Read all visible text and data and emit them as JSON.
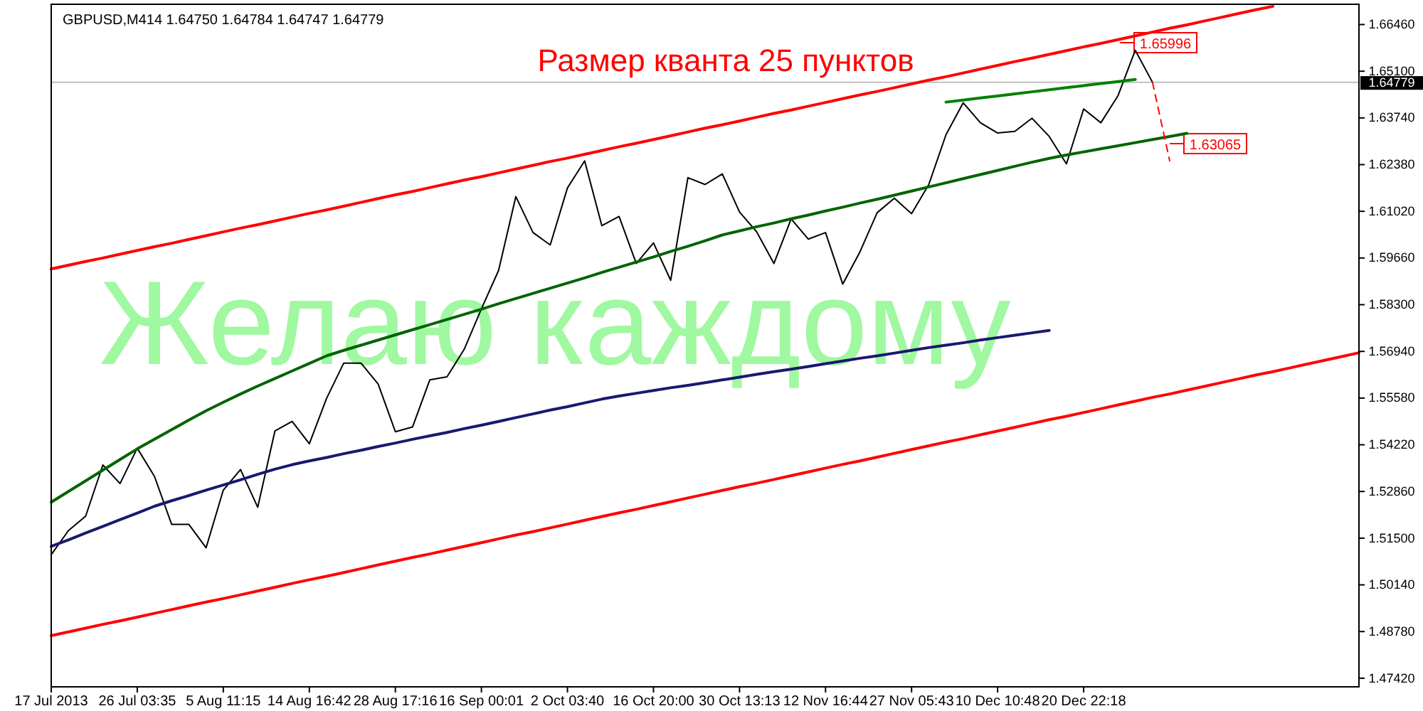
{
  "chart_data": {
    "type": "line",
    "title": "GBPUSD,M414  1.64750 1.64784 1.64747 1.64779",
    "categories": [
      "17 Jul 2013",
      null,
      null,
      null,
      null,
      "26 Jul 03:35",
      null,
      null,
      null,
      null,
      "5 Aug 11:15",
      null,
      null,
      null,
      null,
      "14 Aug 16:42",
      null,
      null,
      null,
      null,
      "28 Aug 17:16",
      null,
      null,
      null,
      null,
      "16 Sep 00:01",
      null,
      null,
      null,
      null,
      "2 Oct 03:40",
      null,
      null,
      null,
      null,
      "16 Oct 20:00",
      null,
      null,
      null,
      null,
      "30 Oct 13:13",
      null,
      null,
      null,
      null,
      "12 Nov 16:44",
      null,
      null,
      null,
      null,
      "27 Nov 05:43",
      null,
      null,
      null,
      null,
      "10 Dec 10:48",
      null,
      null,
      null,
      null,
      "20 Dec 22:18",
      null,
      null,
      null,
      null,
      null,
      null,
      null,
      null,
      null,
      null,
      null,
      null,
      null,
      null,
      null,
      null
    ],
    "ylim": [
      1.4717,
      1.6705
    ],
    "yticks": [
      {
        "value": 1.4742,
        "label": "1.47420"
      },
      {
        "value": 1.4878,
        "label": "1.48780"
      },
      {
        "value": 1.5014,
        "label": "1.50140"
      },
      {
        "value": 1.515,
        "label": "1.51500"
      },
      {
        "value": 1.5286,
        "label": "1.52860"
      },
      {
        "value": 1.5422,
        "label": "1.54220"
      },
      {
        "value": 1.5558,
        "label": "1.55580"
      },
      {
        "value": 1.5694,
        "label": "1.56940"
      },
      {
        "value": 1.583,
        "label": "1.58300"
      },
      {
        "value": 1.5966,
        "label": "1.59660"
      },
      {
        "value": 1.6102,
        "label": "1.61020"
      },
      {
        "value": 1.6238,
        "label": "1.62380"
      },
      {
        "value": 1.6374,
        "label": "1.63740"
      },
      {
        "value": 1.651,
        "label": "1.65100"
      },
      {
        "value": 1.6646,
        "label": "1.66460"
      }
    ],
    "grid": false,
    "legend": false,
    "marker": "none",
    "series": [
      {
        "color": "#000000",
        "values": [
          1.5102,
          1.5172,
          1.5214,
          1.5363,
          1.5309,
          1.5412,
          1.533,
          1.519,
          1.519,
          1.5122,
          1.529,
          1.535,
          1.524,
          1.5462,
          1.549,
          1.5425,
          1.5557,
          1.566,
          1.566,
          1.5599,
          1.546,
          1.5474,
          1.5611,
          1.562,
          1.57,
          1.5818,
          1.593,
          1.6145,
          1.604,
          1.6004,
          1.617,
          1.6249,
          1.606,
          1.6087,
          1.595,
          1.601,
          1.5901,
          1.62,
          1.618,
          1.6211,
          1.61,
          1.6042,
          1.595,
          1.608,
          1.6021,
          1.604,
          1.589,
          1.5984,
          1.6098,
          1.614,
          1.6095,
          1.618,
          1.6325,
          1.6418,
          1.636,
          1.633,
          1.6335,
          1.6373,
          1.632,
          1.624,
          1.64,
          1.636,
          1.6439,
          1.6571,
          1.6478,
          null,
          null,
          null,
          null,
          null,
          null,
          null,
          null,
          null,
          null,
          null,
          null
        ]
      },
      {
        "color": "#ff0000",
        "values": [
          1.5934,
          1.5945,
          1.5956,
          1.5966,
          1.5977,
          1.5988,
          1.5999,
          1.6009,
          1.602,
          1.6031,
          1.6042,
          1.6053,
          1.6063,
          1.6074,
          1.6085,
          1.6096,
          1.6106,
          1.6117,
          1.6128,
          1.6139,
          1.615,
          1.616,
          1.6171,
          1.6182,
          1.6193,
          1.6203,
          1.6214,
          1.6225,
          1.6236,
          1.6247,
          1.6257,
          1.6268,
          1.6279,
          1.629,
          1.63,
          1.6311,
          1.6322,
          1.6333,
          1.6344,
          1.6354,
          1.6365,
          1.6376,
          1.6387,
          1.6397,
          1.6408,
          1.6419,
          1.643,
          1.6441,
          1.6451,
          1.6462,
          1.6473,
          1.6484,
          1.6494,
          1.6505,
          1.6516,
          1.6527,
          1.6538,
          1.6548,
          1.6559,
          1.657,
          1.6581,
          1.6591,
          1.6602,
          1.6613,
          1.6624,
          1.6635,
          1.6645,
          1.6656,
          1.6667,
          1.6678,
          1.6689,
          1.6699,
          null,
          null,
          null,
          null,
          null
        ]
      },
      {
        "color": "#ff0000",
        "values": [
          1.4866,
          1.4877,
          1.4888,
          1.4899,
          1.4909,
          1.492,
          1.4931,
          1.4942,
          1.4953,
          1.4964,
          1.4974,
          1.4985,
          1.4996,
          1.5007,
          1.5018,
          1.5029,
          1.5039,
          1.505,
          1.5061,
          1.5072,
          1.5083,
          1.5094,
          1.5104,
          1.5115,
          1.5126,
          1.5137,
          1.5148,
          1.5159,
          1.5169,
          1.518,
          1.5191,
          1.5202,
          1.5213,
          1.5224,
          1.5234,
          1.5245,
          1.5256,
          1.5267,
          1.5278,
          1.5289,
          1.53,
          1.531,
          1.5321,
          1.5332,
          1.5343,
          1.5354,
          1.5365,
          1.5375,
          1.5386,
          1.5397,
          1.5408,
          1.5419,
          1.543,
          1.544,
          1.5451,
          1.5462,
          1.5473,
          1.5484,
          1.5495,
          1.5505,
          1.5516,
          1.5527,
          1.5538,
          1.5549,
          1.556,
          1.557,
          1.5581,
          1.5592,
          1.5603,
          1.5614,
          1.5625,
          1.5635,
          1.5646,
          1.5657,
          1.5668,
          1.5679,
          1.569
        ]
      },
      {
        "color": "#006400",
        "values": [
          1.5255,
          1.5286,
          1.5317,
          1.5348,
          1.5379,
          1.541,
          1.5438,
          1.5466,
          1.5494,
          1.5521,
          1.5546,
          1.557,
          1.5593,
          1.5615,
          1.5637,
          1.5659,
          1.5681,
          1.5697,
          1.5712,
          1.5727,
          1.5742,
          1.5757,
          1.5772,
          1.5787,
          1.5802,
          1.5817,
          1.5833,
          1.5848,
          1.5863,
          1.5878,
          1.5893,
          1.5908,
          1.5924,
          1.5939,
          1.5954,
          1.5969,
          1.5985,
          1.6,
          1.6016,
          1.6033,
          1.6045,
          1.6057,
          1.6068,
          1.608,
          1.6091,
          1.6103,
          1.6114,
          1.6126,
          1.6137,
          1.6149,
          1.6161,
          1.6173,
          1.6185,
          1.6197,
          1.6209,
          1.6221,
          1.6233,
          1.6245,
          1.6256,
          1.6266,
          1.6275,
          1.6284,
          1.6293,
          1.6302,
          1.6311,
          1.632,
          1.6329,
          null,
          null,
          null,
          null,
          null,
          null,
          null,
          null,
          null,
          null
        ]
      },
      {
        "color": "#008000",
        "values": [
          null,
          null,
          null,
          null,
          null,
          null,
          null,
          null,
          null,
          null,
          null,
          null,
          null,
          null,
          null,
          null,
          null,
          null,
          null,
          null,
          null,
          null,
          null,
          null,
          null,
          null,
          null,
          null,
          null,
          null,
          null,
          null,
          null,
          null,
          null,
          null,
          null,
          null,
          null,
          null,
          null,
          null,
          null,
          null,
          null,
          null,
          null,
          null,
          null,
          null,
          null,
          null,
          1.642,
          1.6426,
          1.6432,
          1.6438,
          1.6444,
          1.645,
          1.6456,
          1.6462,
          1.6468,
          1.6474,
          1.648,
          1.6486,
          null,
          null,
          null,
          null,
          null,
          null,
          null,
          null,
          null,
          null,
          null,
          null,
          null
        ]
      },
      {
        "color": "#191970",
        "values": [
          1.5126,
          1.5145,
          1.5165,
          1.5184,
          1.5204,
          1.5223,
          1.5243,
          1.5259,
          1.5274,
          1.529,
          1.5305,
          1.532,
          1.5336,
          1.5351,
          1.5364,
          1.5375,
          1.5385,
          1.5396,
          1.5406,
          1.5417,
          1.5427,
          1.5438,
          1.5448,
          1.5458,
          1.5469,
          1.5479,
          1.549,
          1.5501,
          1.5512,
          1.5523,
          1.5533,
          1.5544,
          1.5555,
          1.5564,
          1.5572,
          1.558,
          1.5588,
          1.5595,
          1.5603,
          1.5611,
          1.5619,
          1.5627,
          1.5635,
          1.5642,
          1.565,
          1.5658,
          1.5666,
          1.5674,
          1.5681,
          1.5689,
          1.5697,
          1.5705,
          1.5712,
          1.5719,
          1.5727,
          1.5734,
          1.5741,
          1.5748,
          1.5755,
          null,
          null,
          null,
          null,
          null,
          null,
          null,
          null,
          null,
          null,
          null,
          null,
          null,
          null,
          null,
          null,
          null,
          null
        ]
      },
      {
        "color": "#ff0000",
        "line_style": "dashed",
        "values": [
          null,
          null,
          null,
          null,
          null,
          null,
          null,
          null,
          null,
          null,
          null,
          null,
          null,
          null,
          null,
          null,
          null,
          null,
          null,
          null,
          null,
          null,
          null,
          null,
          null,
          null,
          null,
          null,
          null,
          null,
          null,
          null,
          null,
          null,
          null,
          null,
          null,
          null,
          null,
          null,
          null,
          null,
          null,
          null,
          null,
          null,
          null,
          null,
          null,
          null,
          null,
          null,
          null,
          null,
          null,
          null,
          null,
          null,
          null,
          null,
          null,
          null,
          null,
          null,
          1.6478,
          1.6249,
          null,
          null,
          null,
          null,
          null,
          null,
          null,
          null,
          null,
          null,
          null
        ]
      }
    ],
    "ref_lines": [
      {
        "axis": "y",
        "value": 1.64779,
        "label": "1.64779",
        "color": "#c0c0c0"
      }
    ],
    "annotations": [
      "Размер кванта 25 пунктов",
      "Желаю каждому",
      "1.65996",
      "1.63065"
    ]
  }
}
